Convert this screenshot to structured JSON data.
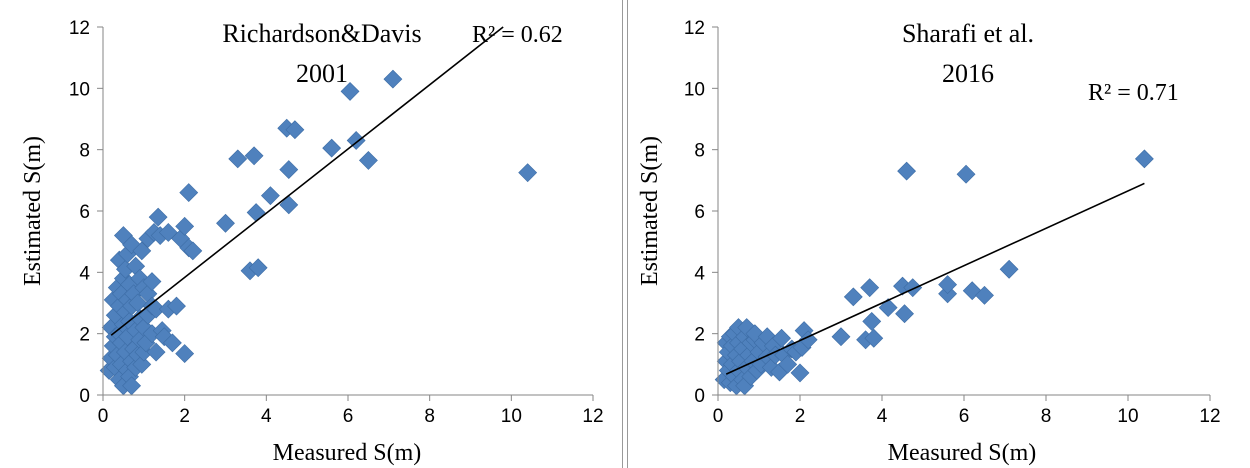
{
  "chart_data": [
    {
      "type": "scatter",
      "title": "Richardson&Davis",
      "subtitle": "2001",
      "xlabel": "Measured S(m)",
      "ylabel": "Estimated S(m)",
      "xlim": [
        0,
        12
      ],
      "ylim": [
        0,
        12
      ],
      "xticks": [
        "0",
        "2",
        "4",
        "6",
        "8",
        "10",
        "12"
      ],
      "yticks": [
        "0",
        "2",
        "4",
        "6",
        "8",
        "10",
        "12"
      ],
      "grid": false,
      "marker_color": "#4F81BD",
      "r2_label": "R² = 0.62",
      "trendline": {
        "x": [
          0.2,
          9.8
        ],
        "y": [
          1.95,
          12.0
        ]
      },
      "points": [
        [
          0.15,
          0.8
        ],
        [
          0.2,
          1.2
        ],
        [
          0.2,
          2.2
        ],
        [
          0.25,
          1.6
        ],
        [
          0.25,
          3.1
        ],
        [
          0.3,
          0.9
        ],
        [
          0.3,
          1.9
        ],
        [
          0.3,
          2.6
        ],
        [
          0.35,
          1.3
        ],
        [
          0.35,
          3.5
        ],
        [
          0.4,
          0.5
        ],
        [
          0.4,
          2.0
        ],
        [
          0.4,
          2.9
        ],
        [
          0.4,
          4.4
        ],
        [
          0.45,
          1.0
        ],
        [
          0.45,
          1.7
        ],
        [
          0.45,
          3.3
        ],
        [
          0.5,
          0.3
        ],
        [
          0.5,
          2.3
        ],
        [
          0.5,
          3.8
        ],
        [
          0.5,
          5.2
        ],
        [
          0.55,
          1.4
        ],
        [
          0.55,
          2.7
        ],
        [
          0.55,
          4.1
        ],
        [
          0.6,
          0.8
        ],
        [
          0.6,
          1.9
        ],
        [
          0.6,
          3.1
        ],
        [
          0.6,
          4.6
        ],
        [
          0.65,
          0.6
        ],
        [
          0.65,
          2.4
        ],
        [
          0.65,
          3.6
        ],
        [
          0.7,
          0.3
        ],
        [
          0.7,
          1.1
        ],
        [
          0.7,
          2.9
        ],
        [
          0.7,
          4.9
        ],
        [
          0.75,
          1.5
        ],
        [
          0.75,
          3.3
        ],
        [
          0.8,
          0.9
        ],
        [
          0.8,
          2.1
        ],
        [
          0.8,
          4.2
        ],
        [
          0.85,
          1.3
        ],
        [
          0.85,
          3.0
        ],
        [
          0.9,
          1.8
        ],
        [
          0.9,
          2.5
        ],
        [
          0.9,
          3.8
        ],
        [
          0.95,
          1.0
        ],
        [
          0.95,
          4.7
        ],
        [
          1.0,
          1.4
        ],
        [
          1.0,
          2.2
        ],
        [
          1.0,
          3.5
        ],
        [
          1.05,
          1.7
        ],
        [
          1.1,
          2.6
        ],
        [
          1.1,
          3.3
        ],
        [
          1.1,
          5.1
        ],
        [
          1.2,
          2.0
        ],
        [
          1.2,
          2.9
        ],
        [
          1.2,
          3.7
        ],
        [
          1.25,
          5.3
        ],
        [
          1.3,
          1.4
        ],
        [
          1.3,
          2.8
        ],
        [
          1.35,
          5.8
        ],
        [
          1.4,
          5.2
        ],
        [
          1.45,
          2.1
        ],
        [
          1.5,
          1.9
        ],
        [
          1.6,
          5.3
        ],
        [
          1.6,
          2.8
        ],
        [
          1.7,
          1.7
        ],
        [
          1.8,
          2.9
        ],
        [
          1.9,
          5.1
        ],
        [
          2.0,
          5.5
        ],
        [
          2.0,
          1.35
        ],
        [
          2.1,
          4.8
        ],
        [
          2.1,
          6.6
        ],
        [
          2.2,
          4.7
        ],
        [
          3.0,
          5.6
        ],
        [
          3.3,
          7.7
        ],
        [
          3.6,
          4.05
        ],
        [
          3.7,
          7.8
        ],
        [
          3.75,
          5.95
        ],
        [
          3.8,
          4.15
        ],
        [
          4.1,
          6.5
        ],
        [
          4.5,
          8.7
        ],
        [
          4.55,
          7.35
        ],
        [
          4.55,
          6.2
        ],
        [
          4.7,
          8.65
        ],
        [
          5.6,
          8.05
        ],
        [
          6.05,
          9.9
        ],
        [
          6.2,
          8.3
        ],
        [
          6.5,
          7.65
        ],
        [
          7.1,
          10.3
        ],
        [
          10.4,
          7.25
        ]
      ]
    },
    {
      "type": "scatter",
      "title": "Sharafi et al.",
      "subtitle": "2016",
      "xlabel": "Measured S(m)",
      "ylabel": "Estimated S(m)",
      "xlim": [
        0,
        12
      ],
      "ylim": [
        0,
        12
      ],
      "xticks": [
        "0",
        "2",
        "4",
        "6",
        "8",
        "10",
        "12"
      ],
      "yticks": [
        "0",
        "2",
        "4",
        "6",
        "8",
        "10",
        "12"
      ],
      "grid": false,
      "marker_color": "#4F81BD",
      "r2_label": "R² = 0.71",
      "trendline": {
        "x": [
          0.2,
          10.4
        ],
        "y": [
          0.68,
          6.9
        ]
      },
      "points": [
        [
          0.15,
          0.5
        ],
        [
          0.2,
          1.1
        ],
        [
          0.2,
          1.7
        ],
        [
          0.25,
          0.8
        ],
        [
          0.25,
          1.4
        ],
        [
          0.3,
          0.4
        ],
        [
          0.3,
          1.9
        ],
        [
          0.35,
          1.0
        ],
        [
          0.35,
          1.6
        ],
        [
          0.4,
          0.6
        ],
        [
          0.4,
          2.0
        ],
        [
          0.45,
          0.3
        ],
        [
          0.45,
          1.3
        ],
        [
          0.5,
          0.8
        ],
        [
          0.5,
          1.7
        ],
        [
          0.5,
          2.2
        ],
        [
          0.55,
          1.1
        ],
        [
          0.6,
          0.5
        ],
        [
          0.6,
          1.5
        ],
        [
          0.65,
          0.3
        ],
        [
          0.65,
          1.9
        ],
        [
          0.7,
          0.9
        ],
        [
          0.7,
          2.2
        ],
        [
          0.75,
          1.3
        ],
        [
          0.8,
          0.6
        ],
        [
          0.8,
          1.7
        ],
        [
          0.85,
          1.1
        ],
        [
          0.9,
          1.8
        ],
        [
          0.9,
          2.0
        ],
        [
          0.95,
          0.8
        ],
        [
          1.0,
          1.4
        ],
        [
          1.05,
          1.0
        ],
        [
          1.1,
          1.7
        ],
        [
          1.2,
          1.25
        ],
        [
          1.2,
          1.9
        ],
        [
          1.3,
          0.9
        ],
        [
          1.35,
          1.6
        ],
        [
          1.4,
          1.3
        ],
        [
          1.5,
          0.75
        ],
        [
          1.55,
          1.85
        ],
        [
          1.6,
          1.3
        ],
        [
          1.7,
          1.0
        ],
        [
          1.8,
          1.5
        ],
        [
          1.9,
          1.4
        ],
        [
          2.0,
          0.72
        ],
        [
          2.05,
          1.55
        ],
        [
          2.1,
          2.1
        ],
        [
          2.2,
          1.8
        ],
        [
          3.0,
          1.9
        ],
        [
          3.3,
          3.2
        ],
        [
          3.6,
          1.8
        ],
        [
          3.7,
          3.5
        ],
        [
          3.75,
          2.4
        ],
        [
          3.8,
          1.85
        ],
        [
          4.15,
          2.85
        ],
        [
          4.5,
          3.55
        ],
        [
          4.55,
          2.65
        ],
        [
          4.6,
          7.3
        ],
        [
          4.75,
          3.5
        ],
        [
          5.6,
          3.3
        ],
        [
          5.6,
          3.6
        ],
        [
          6.05,
          7.2
        ],
        [
          6.2,
          3.4
        ],
        [
          6.5,
          3.25
        ],
        [
          7.1,
          4.1
        ],
        [
          10.4,
          7.7
        ]
      ]
    }
  ]
}
